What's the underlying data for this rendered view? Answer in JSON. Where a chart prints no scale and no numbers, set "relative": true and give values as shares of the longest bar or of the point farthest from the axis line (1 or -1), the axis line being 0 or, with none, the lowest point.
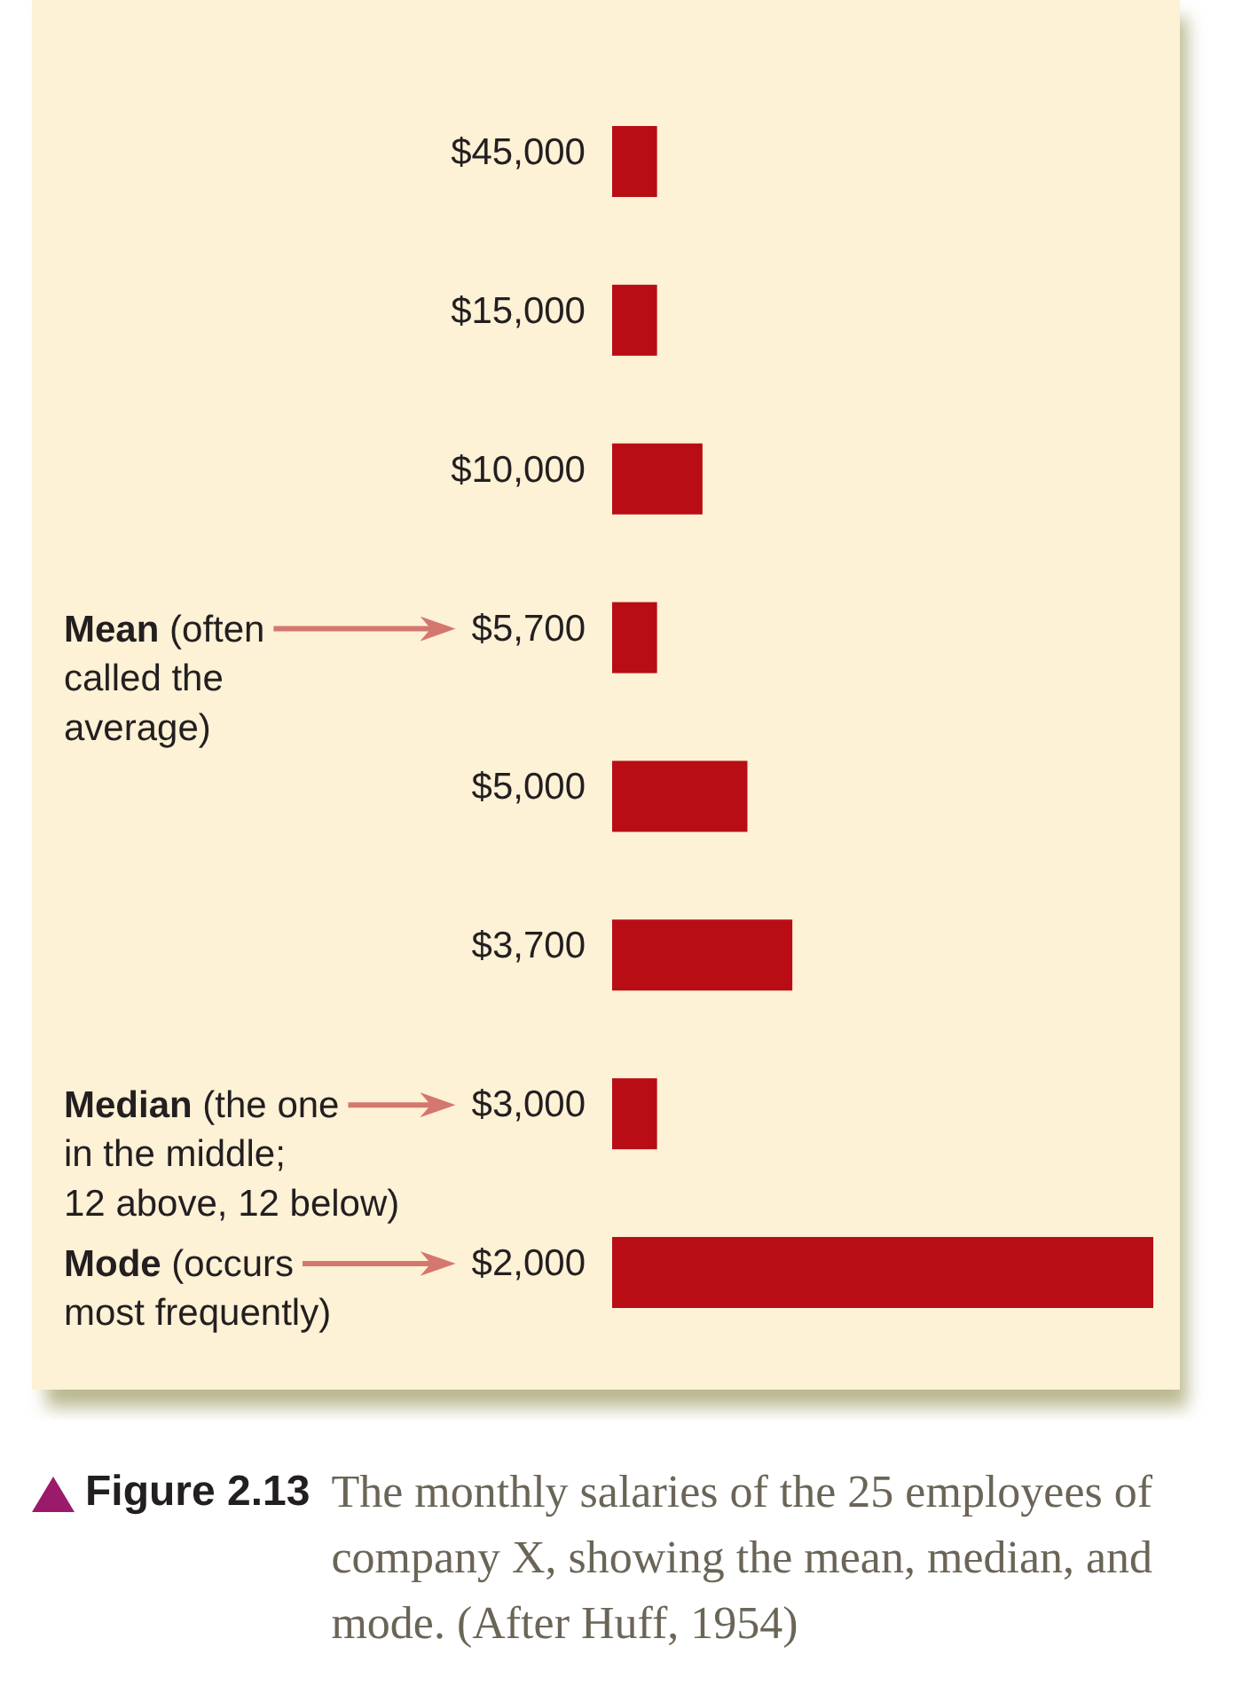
{
  "chart_data": {
    "type": "bar",
    "orientation": "horizontal",
    "relative": true,
    "title": "Figure 2.13",
    "subtitle": "The monthly salaries of the 25 employees of company X, showing the mean, median, and mode. (After Huff, 1954)",
    "categories": [
      "$45,000",
      "$15,000",
      "$10,000",
      "$5,700",
      "$5,000",
      "$3,700",
      "$3,000",
      "$2,000"
    ],
    "values": [
      0.083,
      0.083,
      0.167,
      0.083,
      0.25,
      0.333,
      0.083,
      1
    ],
    "color": "#b80d14",
    "ref_lines": [
      {
        "axis": "y",
        "value": "$5,700",
        "label": "Mean (often\ncalled the\naverage)",
        "color": "#d4776f"
      },
      {
        "axis": "y",
        "value": "$3,000",
        "label": "Median (the one\nin the middle;\n12 above, 12 below)",
        "color": "#d4776f"
      },
      {
        "axis": "y",
        "value": "$2,000",
        "label": "Mode (occurs\nmost frequently)",
        "color": "#d4776f"
      }
    ]
  }
}
